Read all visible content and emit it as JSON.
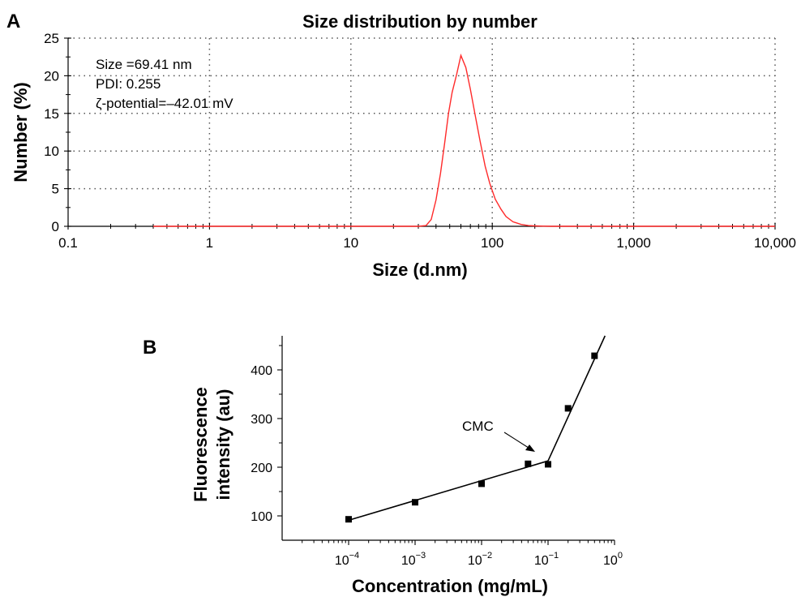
{
  "panels": {
    "a": "A",
    "b": "B"
  },
  "chart_data": [
    {
      "type": "line",
      "title": "Size distribution by number",
      "xlabel": "Size (d.nm)",
      "ylabel": "Number (%)",
      "x_scale": "log",
      "xlim": [
        0.1,
        10000
      ],
      "ylim": [
        0,
        25
      ],
      "x_ticks": [
        0.1,
        1,
        10,
        100,
        1000,
        10000
      ],
      "x_tick_labels": [
        "0.1",
        "1",
        "10",
        "100",
        "1,000",
        "10,000"
      ],
      "y_ticks": [
        0,
        5,
        10,
        15,
        20,
        25
      ],
      "y_tick_labels": [
        "0",
        "5",
        "10",
        "15",
        "20",
        "25"
      ],
      "grid": true,
      "annotations": [
        "Size =69.41 nm",
        "PDI: 0.255",
        "ζ-potential=–42.01 mV"
      ],
      "colors": {
        "series": "#ff2a2a"
      },
      "series": [
        {
          "x": [
            0.4,
            10,
            30,
            34,
            37,
            40,
            43,
            46,
            49,
            52,
            56,
            60,
            65,
            70,
            76,
            82,
            89,
            96,
            105,
            115,
            125,
            140,
            160,
            180,
            200,
            230,
            260,
            300,
            10000
          ],
          "y": [
            0,
            0,
            0,
            0.1,
            0.9,
            3.5,
            7.0,
            11.0,
            15.0,
            17.8,
            20.2,
            22.7,
            21.1,
            18.2,
            14.6,
            11.3,
            8.0,
            5.7,
            3.6,
            2.3,
            1.3,
            0.6,
            0.25,
            0.1,
            0.05,
            0.02,
            0,
            0,
            0
          ]
        }
      ]
    },
    {
      "type": "scatter",
      "xlabel": "Concentration (mg/mL)",
      "ylabel": "Fluorescence intensity (au)",
      "ylabel_lines": [
        "Fluorescence",
        "intensity (au)"
      ],
      "x_scale": "log",
      "xlim": [
        1e-05,
        1
      ],
      "ylim": [
        50,
        470
      ],
      "x_ticks": [
        0.0001,
        0.001,
        0.01,
        0.1,
        1
      ],
      "x_tick_labels": [
        {
          "base": "10",
          "exp": "−4"
        },
        {
          "base": "10",
          "exp": "−3"
        },
        {
          "base": "10",
          "exp": "−2"
        },
        {
          "base": "10",
          "exp": "−1"
        },
        {
          "base": "10",
          "exp": "0"
        }
      ],
      "y_ticks": [
        100,
        200,
        300,
        400
      ],
      "y_tick_labels": [
        "100",
        "200",
        "300",
        "400"
      ],
      "annotations": [
        "CMC"
      ],
      "points": [
        {
          "x": 0.0001,
          "y": 93
        },
        {
          "x": 0.001,
          "y": 128
        },
        {
          "x": 0.01,
          "y": 166
        },
        {
          "x": 0.05,
          "y": 207
        },
        {
          "x": 0.1,
          "y": 206
        },
        {
          "x": 0.2,
          "y": 321
        },
        {
          "x": 0.5,
          "y": 429
        }
      ],
      "fit_lines": [
        {
          "x": [
            0.0001,
            0.1
          ],
          "y": [
            91,
            213
          ]
        },
        {
          "x": [
            0.1,
            0.72
          ],
          "y": [
            213,
            470
          ]
        }
      ],
      "cmc_x": 0.1
    }
  ]
}
